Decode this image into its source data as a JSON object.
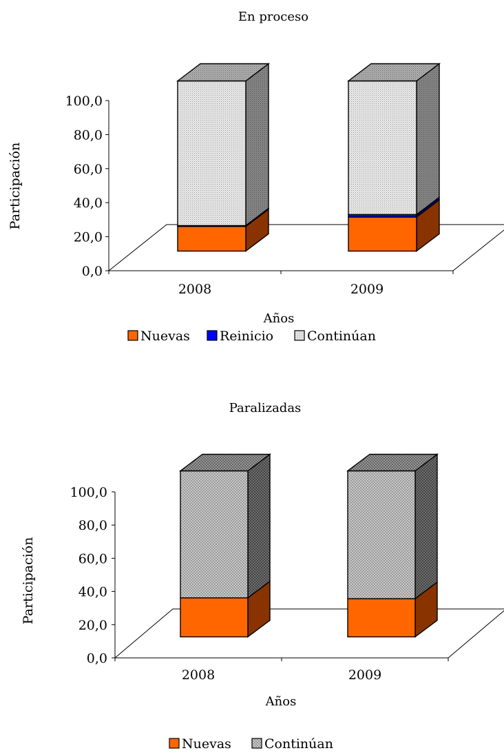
{
  "chart_data": [
    {
      "type": "bar",
      "stacked": true,
      "three_d": true,
      "title": "En proceso",
      "xlabel": "Años",
      "ylabel": "Participación",
      "categories": [
        "2008",
        "2009"
      ],
      "ylim": [
        0,
        100
      ],
      "yticks": [
        "0,0",
        "20,0",
        "40,0",
        "60,0",
        "80,0",
        "100,0"
      ],
      "legend_position": "bottom",
      "series": [
        {
          "name": "Nuevas",
          "values": [
            14.5,
            20.0
          ],
          "color": "#ff6600",
          "side_color": "#883300",
          "top_color": "#cc5200",
          "pattern": "solid"
        },
        {
          "name": "Reinicio",
          "values": [
            0.5,
            1.5
          ],
          "color": "#0000ff",
          "side_color": "#000080",
          "top_color": "#0000cc",
          "pattern": "solid"
        },
        {
          "name": "Continúan",
          "values": [
            85.0,
            78.5
          ],
          "color": "#e2e2e2",
          "side_color": "#7d7d7d",
          "top_color": "#a6a6a6",
          "pattern": "dots"
        }
      ]
    },
    {
      "type": "bar",
      "stacked": true,
      "three_d": true,
      "title": "Paralizadas",
      "xlabel": "Años",
      "ylabel": "Participación",
      "categories": [
        "2008",
        "2009"
      ],
      "ylim": [
        0,
        100
      ],
      "yticks": [
        "0,0",
        "20,0",
        "40,0",
        "60,0",
        "80,0",
        "100,0"
      ],
      "legend_position": "bottom",
      "series": [
        {
          "name": "Nuevas",
          "values": [
            23.5,
            23.0
          ],
          "color": "#ff6600",
          "side_color": "#883300",
          "top_color": "#cc5200",
          "pattern": "solid"
        },
        {
          "name": "Continúan",
          "values": [
            76.5,
            77.0
          ],
          "color": "#c8c8c8",
          "side_color": "#5e5e5e",
          "top_color": "#8c8c8c",
          "pattern": "crosshatch"
        }
      ]
    }
  ]
}
